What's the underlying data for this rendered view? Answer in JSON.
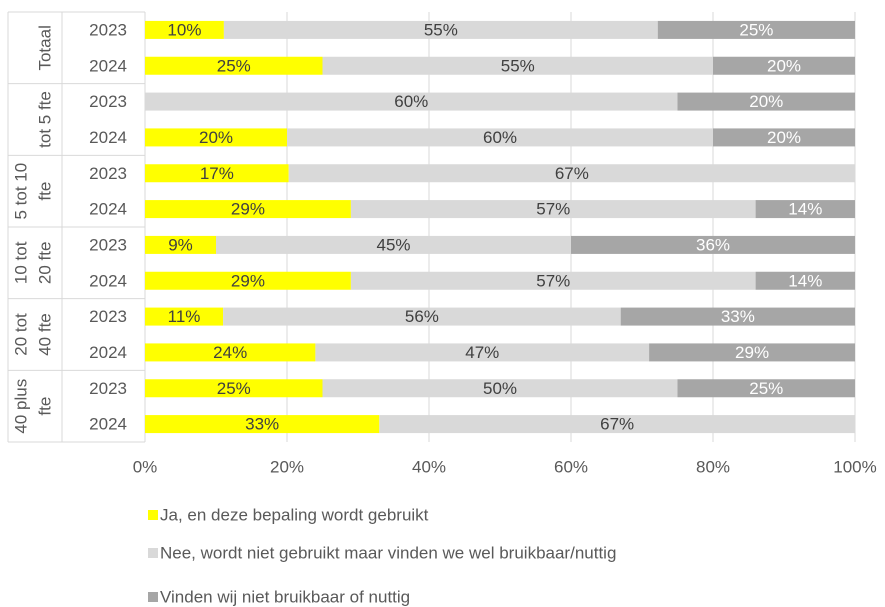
{
  "chart_data": {
    "type": "bar",
    "orientation": "horizontal",
    "stacking": "percent",
    "groups": [
      {
        "label": [
          "Totaal"
        ],
        "categories": [
          "2023",
          "2024"
        ]
      },
      {
        "label": [
          "tot 5 fte"
        ],
        "categories": [
          "2023",
          "2024"
        ]
      },
      {
        "label": [
          "5 tot 10",
          "fte"
        ],
        "categories": [
          "2023",
          "2024"
        ]
      },
      {
        "label": [
          "10 tot",
          "20 fte"
        ],
        "categories": [
          "2023",
          "2024"
        ]
      },
      {
        "label": [
          "20 tot",
          "40 fte"
        ],
        "categories": [
          "2023",
          "2024"
        ]
      },
      {
        "label": [
          "40 plus",
          "fte"
        ],
        "categories": [
          "2023",
          "2024"
        ]
      }
    ],
    "series": [
      {
        "name": "Ja, en deze bepaling wordt gebruikt",
        "color": "#ffff00",
        "label_color": "#404040",
        "values": [
          10,
          25,
          null,
          20,
          17,
          29,
          9,
          29,
          11,
          24,
          25,
          33
        ],
        "value_labels": [
          "10%",
          "25%",
          null,
          "20%",
          "17%",
          "29%",
          "9%",
          "29%",
          "11%",
          "24%",
          "25%",
          "33%"
        ]
      },
      {
        "name": "Nee, wordt niet gebruikt maar vinden we wel bruikbaar/nuttig",
        "color": "#d9d9d9",
        "label_color": "#404040",
        "values": [
          55,
          55,
          60,
          60,
          67,
          57,
          45,
          57,
          56,
          47,
          50,
          67
        ],
        "value_labels": [
          "55%",
          "55%",
          "60%",
          "60%",
          "67%",
          "57%",
          "45%",
          "57%",
          "56%",
          "47%",
          "50%",
          "67%"
        ]
      },
      {
        "name": "Vinden wij niet bruikbaar of nuttig",
        "color": "#a6a6a6",
        "label_color": "#ffffff",
        "values": [
          25,
          20,
          20,
          20,
          null,
          14,
          36,
          14,
          33,
          29,
          25,
          null
        ],
        "value_labels": [
          "25%",
          "20%",
          "20%",
          "20%",
          null,
          "14%",
          "36%",
          "14%",
          "33%",
          "29%",
          "25%",
          null
        ]
      }
    ],
    "xlim": [
      0,
      100
    ],
    "xticks": [
      {
        "value": 0,
        "label": "0%"
      },
      {
        "value": 20,
        "label": "20%"
      },
      {
        "value": 40,
        "label": "40%"
      },
      {
        "value": 60,
        "label": "60%"
      },
      {
        "value": 80,
        "label": "80%"
      },
      {
        "value": 100,
        "label": "100%"
      }
    ],
    "grid": true,
    "legend": "bottom"
  }
}
